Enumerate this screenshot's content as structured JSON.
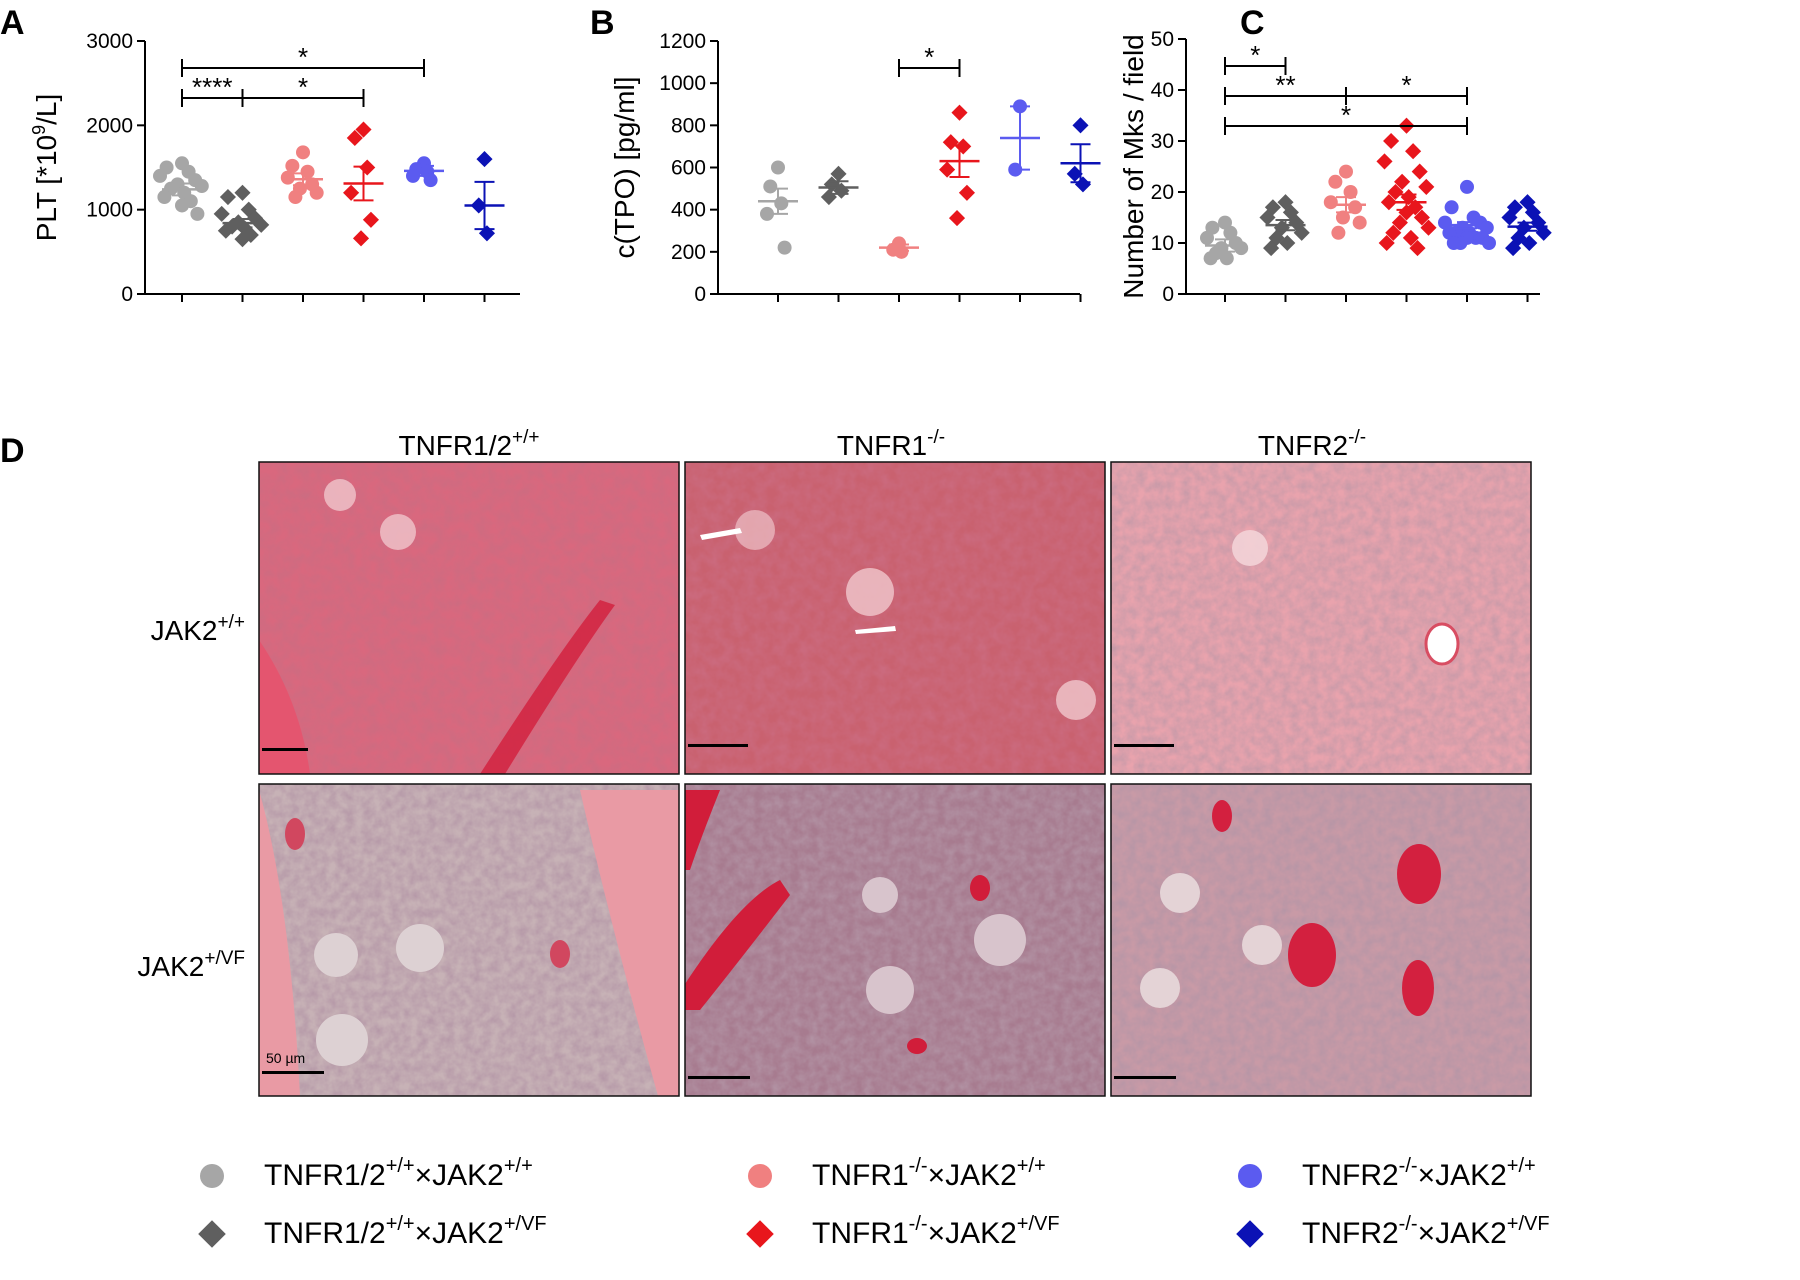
{
  "panel_letters": [
    "A",
    "B",
    "C",
    "D"
  ],
  "chart_data": [
    {
      "type": "scatter",
      "panel": "A",
      "ylabel": "PLT [*10",
      "ylabel_sup": "9",
      "ylabel_end": "/L]",
      "ylim": [
        0,
        3000
      ],
      "yticks": [
        "0",
        "1000",
        "2000",
        "3000"
      ],
      "series": [
        {
          "group": 0,
          "mean": 1240,
          "sem": 70,
          "values": [
            1550,
            1500,
            1450,
            1400,
            1350,
            1300,
            1280,
            1250,
            1200,
            1150,
            1100,
            1050,
            950
          ]
        },
        {
          "group": 1,
          "mean": 840,
          "sem": 50,
          "values": [
            1200,
            1150,
            1000,
            950,
            900,
            850,
            820,
            800,
            780,
            750,
            700,
            650
          ]
        },
        {
          "group": 2,
          "mean": 1360,
          "sem": 70,
          "values": [
            1680,
            1520,
            1450,
            1380,
            1300,
            1250,
            1200,
            1150
          ]
        },
        {
          "group": 3,
          "mean": 1310,
          "sem": 200,
          "values": [
            1950,
            1850,
            1500,
            1200,
            880,
            660
          ]
        },
        {
          "group": 4,
          "mean": 1460,
          "sem": 60,
          "values": [
            1550,
            1480,
            1450,
            1400,
            1350
          ]
        },
        {
          "group": 5,
          "mean": 1050,
          "sem": 280,
          "values": [
            1600,
            1050,
            720
          ]
        }
      ],
      "brackets": [
        {
          "from": 0,
          "to": 4,
          "label": "*",
          "level": 0
        },
        {
          "from": 0,
          "to": 1,
          "label": "****",
          "level": 1
        },
        {
          "from": 1,
          "to": 3,
          "label": "*",
          "level": 1
        }
      ]
    },
    {
      "type": "scatter",
      "panel": "B",
      "ylabel": "c(TPO) [pg/ml]",
      "ylim": [
        0,
        1200
      ],
      "yticks": [
        "0",
        "200",
        "400",
        "600",
        "800",
        "1000",
        "1200"
      ],
      "series": [
        {
          "group": 0,
          "mean": 440,
          "sem": 60,
          "values": [
            600,
            510,
            430,
            380,
            220
          ]
        },
        {
          "group": 1,
          "mean": 505,
          "sem": 30,
          "values": [
            570,
            520,
            490,
            460
          ]
        },
        {
          "group": 2,
          "mean": 220,
          "sem": 15,
          "values": [
            240,
            210,
            200
          ]
        },
        {
          "group": 3,
          "mean": 630,
          "sem": 75,
          "values": [
            860,
            720,
            700,
            590,
            480,
            360
          ]
        },
        {
          "group": 4,
          "mean": 740,
          "sem": 150,
          "values": [
            890,
            590
          ]
        },
        {
          "group": 5,
          "mean": 620,
          "sem": 90,
          "values": [
            800,
            570,
            520
          ]
        }
      ],
      "brackets": [
        {
          "from": 2,
          "to": 3,
          "label": "*",
          "level": 0
        }
      ]
    },
    {
      "type": "scatter",
      "panel": "C",
      "ylabel": "Number of Mks / field",
      "ylim": [
        0,
        50
      ],
      "yticks": [
        "0",
        "10",
        "20",
        "30",
        "40",
        "50"
      ],
      "series": [
        {
          "group": 0,
          "mean": 9.5,
          "sem": 1.2,
          "values": [
            14,
            13,
            12,
            11,
            10,
            9,
            9,
            8,
            7,
            7
          ]
        },
        {
          "group": 1,
          "mean": 13.5,
          "sem": 1.0,
          "values": [
            18,
            17,
            16,
            15,
            14,
            13,
            12,
            11,
            10,
            9
          ]
        },
        {
          "group": 2,
          "mean": 17.5,
          "sem": 1.5,
          "values": [
            24,
            22,
            20,
            18,
            17,
            15,
            14,
            12
          ]
        },
        {
          "group": 3,
          "mean": 18,
          "sem": 1.5,
          "values": [
            33,
            30,
            28,
            26,
            24,
            22,
            21,
            20,
            19,
            18,
            17,
            16,
            15,
            14,
            13,
            12,
            11,
            10,
            9
          ]
        },
        {
          "group": 4,
          "mean": 13.5,
          "sem": 0.6,
          "values": [
            21,
            17,
            15,
            14,
            14,
            13,
            13,
            12,
            12,
            12,
            11,
            11,
            11,
            10,
            10,
            10
          ]
        },
        {
          "group": 5,
          "mean": 13.2,
          "sem": 0.8,
          "values": [
            18,
            17,
            16,
            15,
            14,
            13,
            12,
            11,
            10,
            9
          ]
        }
      ],
      "brackets": [
        {
          "from": 0,
          "to": 1,
          "label": "*",
          "level": 0
        },
        {
          "from": 0,
          "to": 2,
          "label": "**",
          "level": 1
        },
        {
          "from": 2,
          "to": 4,
          "label": "*",
          "level": 1
        },
        {
          "from": 0,
          "to": 4,
          "label": "*",
          "level": 2
        }
      ]
    }
  ],
  "micrographs": {
    "columns": [
      {
        "label": "TNFR1/2",
        "sup": "+/+"
      },
      {
        "label": "TNFR1",
        "sup": "-/-"
      },
      {
        "label": "TNFR2",
        "sup": "-/-"
      }
    ],
    "rows": [
      {
        "label": "JAK2",
        "sup": "+/+"
      },
      {
        "label": "JAK2",
        "sup": "+/VF"
      }
    ],
    "scale_bar_label": "50 µm"
  },
  "legend": {
    "items": [
      {
        "a": "TNFR1/2",
        "asup": "+/+",
        "b": "×JAK2",
        "bsup": "+/+",
        "color": "#a6a6a6",
        "marker": "circle"
      },
      {
        "a": "TNFR1",
        "asup": "-/-",
        "b": "×JAK2",
        "bsup": "+/+",
        "color": "#f08080",
        "marker": "circle"
      },
      {
        "a": "TNFR2",
        "asup": "-/-",
        "b": "×JAK2",
        "bsup": "+/+",
        "color": "#5b5bf0",
        "marker": "circle"
      },
      {
        "a": "TNFR1/2",
        "asup": "+/+",
        "b": "×JAK2",
        "bsup": "+/VF",
        "color": "#5f5f5f",
        "marker": "diamond"
      },
      {
        "a": "TNFR1",
        "asup": "-/-",
        "b": "×JAK2",
        "bsup": "+/VF",
        "color": "#e8161c",
        "marker": "diamond"
      },
      {
        "a": "TNFR2",
        "asup": "-/-",
        "b": "×JAK2",
        "bsup": "+/VF",
        "color": "#0b12b5",
        "marker": "diamond"
      }
    ]
  },
  "group_colors": [
    "#a6a6a6",
    "#5f5f5f",
    "#f08080",
    "#e8161c",
    "#5b5bf0",
    "#0b12b5"
  ],
  "group_markers": [
    "circle",
    "diamond",
    "circle",
    "diamond",
    "circle",
    "diamond"
  ]
}
